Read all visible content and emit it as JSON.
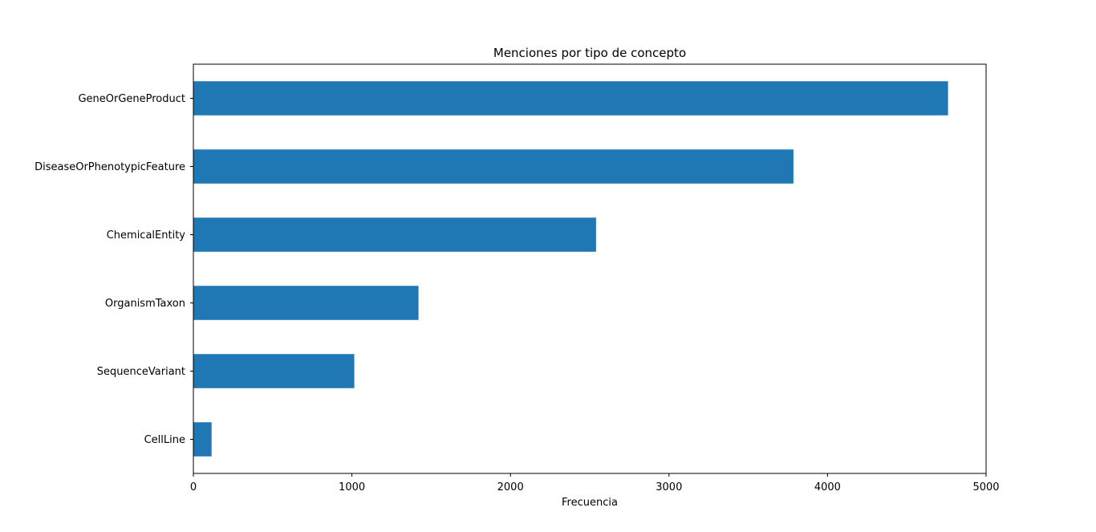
{
  "chart_data": {
    "type": "bar",
    "orientation": "horizontal",
    "title": "Menciones por tipo de concepto",
    "xlabel": "Frecuencia",
    "ylabel": "",
    "categories": [
      "GeneOrGeneProduct",
      "DiseaseOrPhenotypicFeature",
      "ChemicalEntity",
      "OrganismTaxon",
      "SequenceVariant",
      "CellLine"
    ],
    "values": [
      4760,
      3785,
      2540,
      1420,
      1015,
      115
    ],
    "xlim": [
      0,
      5000
    ],
    "xticks": [
      "0",
      "1000",
      "2000",
      "3000",
      "4000",
      "5000"
    ],
    "grid": false,
    "bar_color": "#1f77b4"
  }
}
